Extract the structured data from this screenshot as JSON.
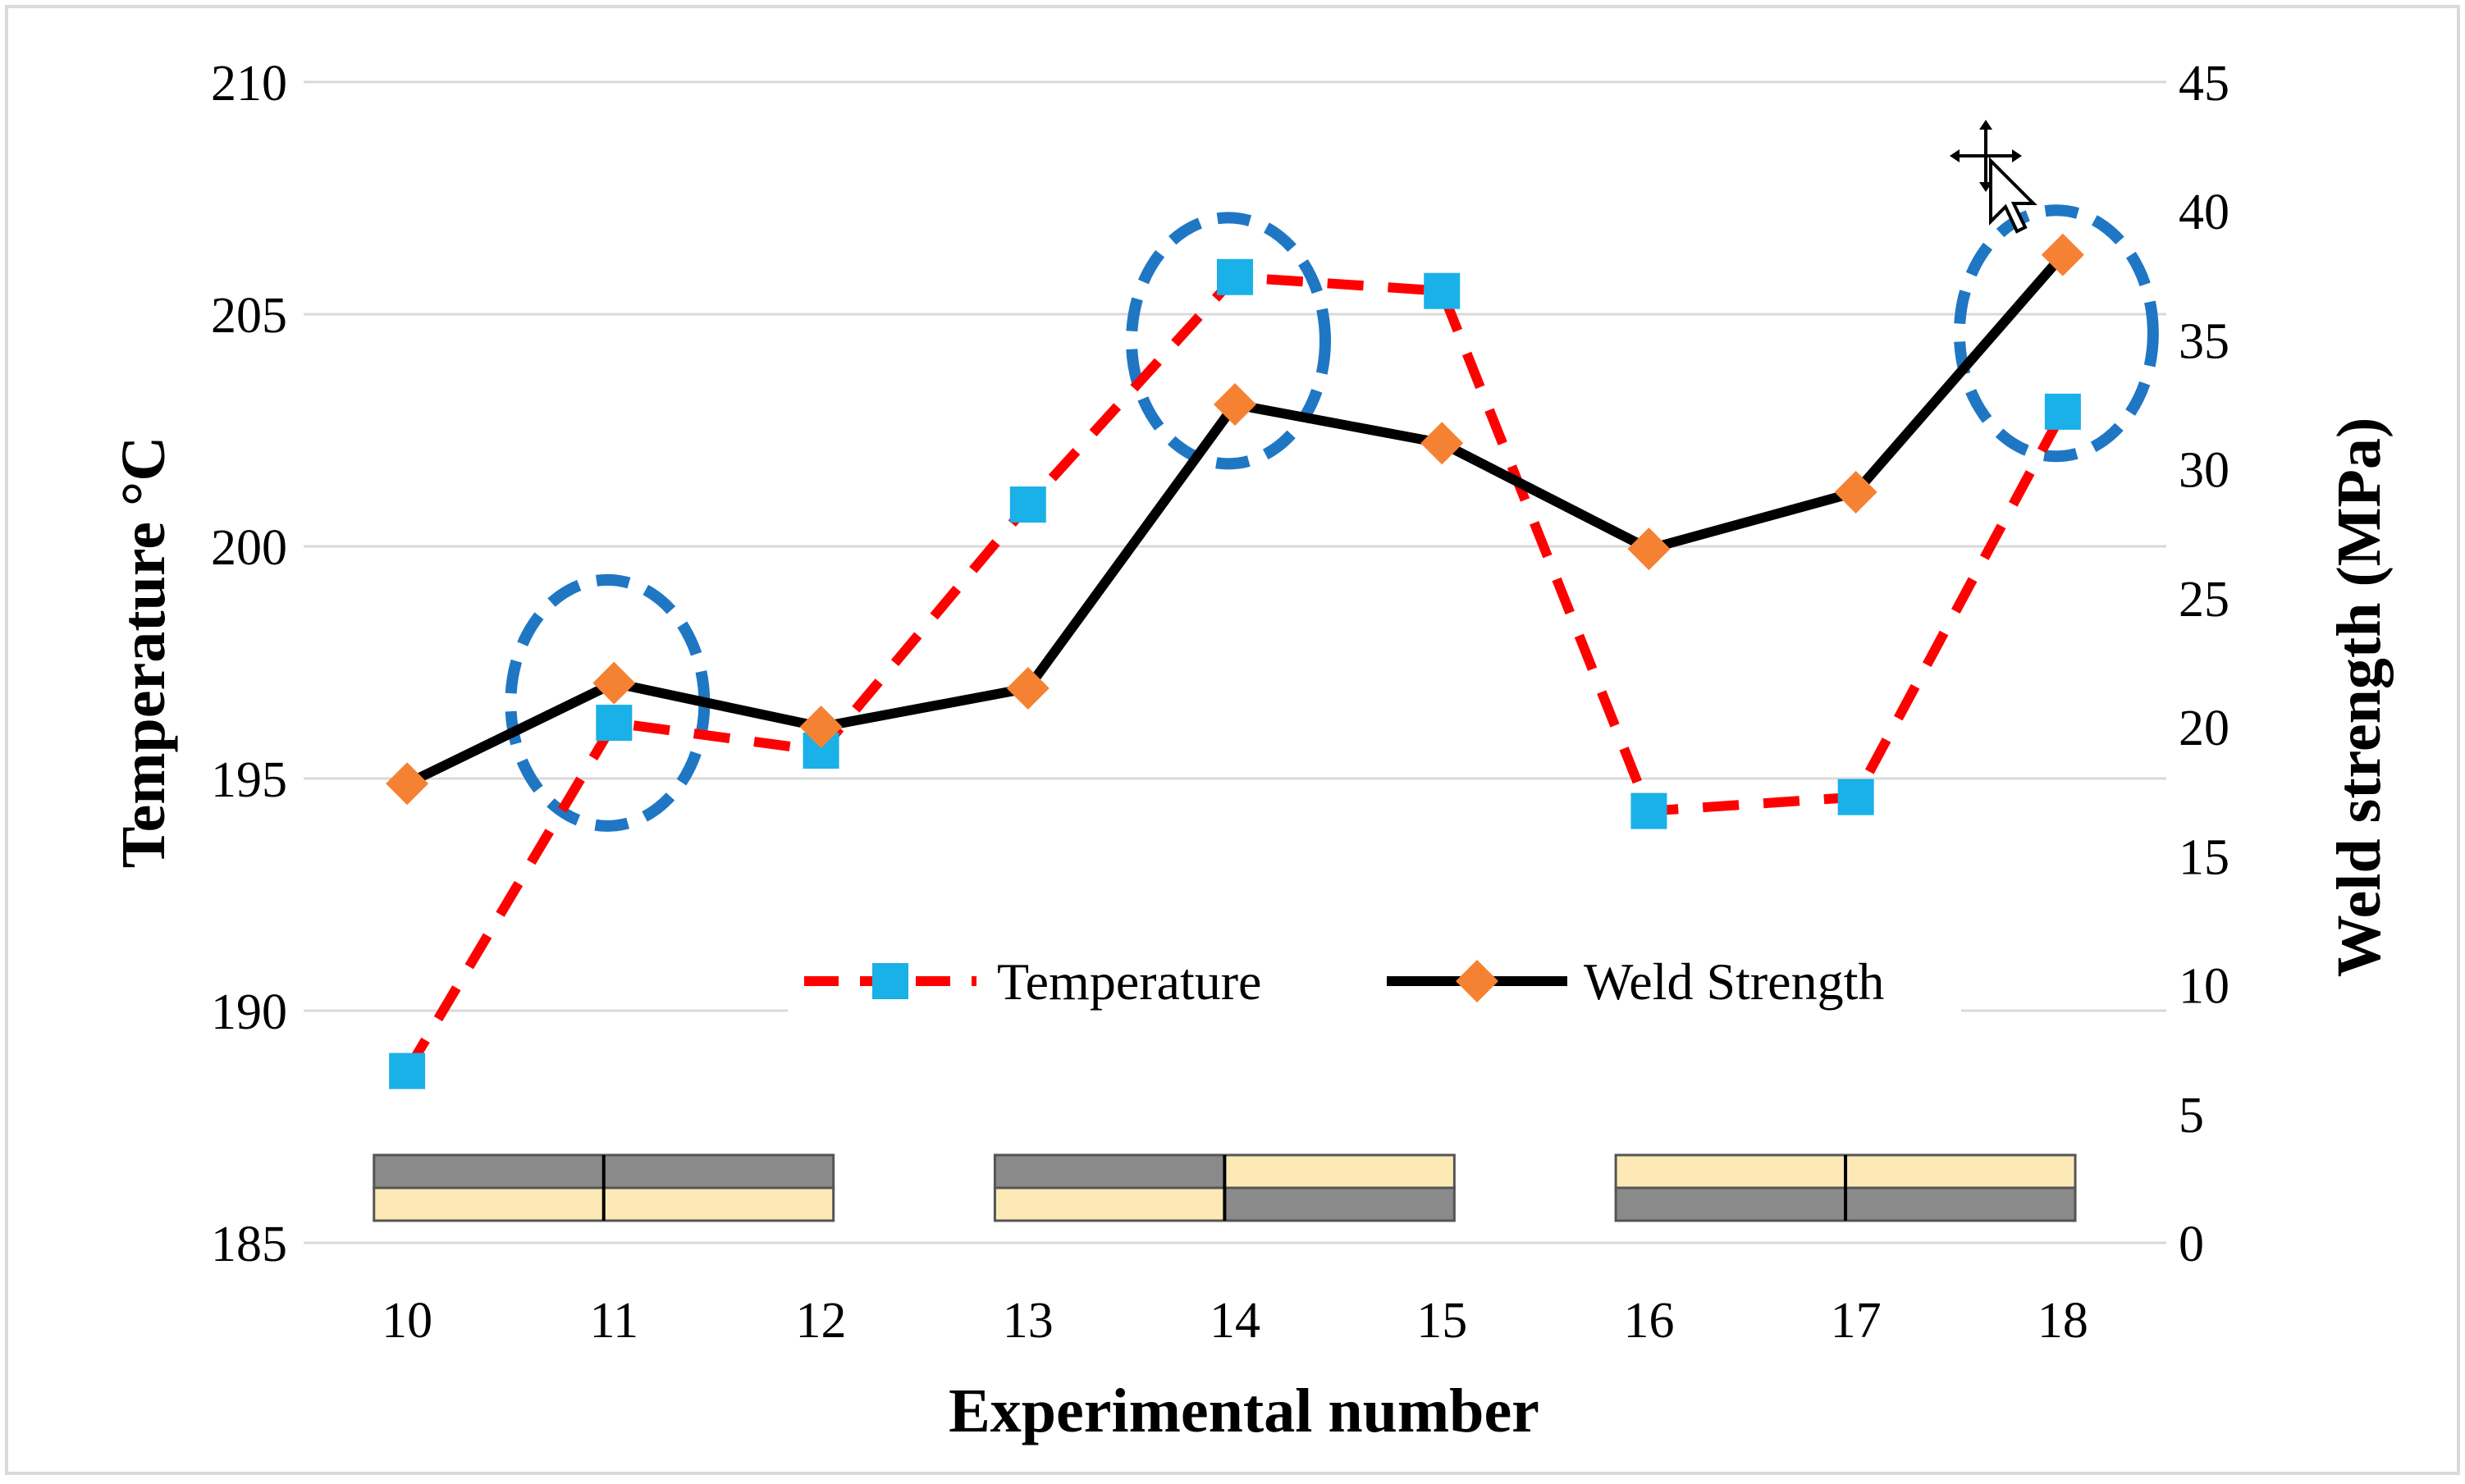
{
  "chart_data": {
    "type": "line",
    "title": "",
    "xlabel": "Experimental number",
    "ylabel_left": "Temperature °C",
    "ylabel_right": "Weld strength (MPa)",
    "categories": [
      "10",
      "11",
      "12",
      "13",
      "14",
      "15",
      "16",
      "17",
      "18"
    ],
    "ylim_left": [
      185,
      210
    ],
    "yticks_left": [
      "185",
      "190",
      "195",
      "200",
      "205",
      "210"
    ],
    "ylim_right": [
      0,
      45
    ],
    "yticks_right": [
      "0",
      "5",
      "10",
      "15",
      "20",
      "25",
      "30",
      "35",
      "40",
      "45"
    ],
    "grid": true,
    "legend_position": "lower-middle",
    "series": [
      {
        "name": "Temperature",
        "axis": "left",
        "color": "#ff0000",
        "marker_color": "#1ab0e8",
        "line_style": "dashed",
        "marker": "square",
        "values": [
          188.7,
          196.2,
          195.6,
          200.9,
          205.8,
          205.5,
          194.3,
          194.6,
          202.9
        ]
      },
      {
        "name": "Weld Strength",
        "axis": "right",
        "color": "#000000",
        "marker_color": "#f58232",
        "line_style": "solid",
        "marker": "diamond",
        "values": [
          17.8,
          21.7,
          20.0,
          21.5,
          32.5,
          31.0,
          26.9,
          29.1,
          38.3
        ]
      }
    ],
    "highlighted_points": [
      "11",
      "14",
      "18"
    ],
    "highlight_color": "#1f77c4",
    "specimen_layers": [
      {
        "top": "gray",
        "bottom": "beige",
        "span": [
          "10",
          "12"
        ]
      },
      {
        "left_top": "gray",
        "left_bottom": "beige",
        "right_top": "beige",
        "right_bottom": "gray",
        "span": [
          "13",
          "15"
        ]
      },
      {
        "top": "beige",
        "bottom": "gray",
        "span": [
          "16",
          "18"
        ]
      }
    ],
    "layer_colors": {
      "gray": "#8a8a8a",
      "beige": "#fde9b6"
    }
  }
}
